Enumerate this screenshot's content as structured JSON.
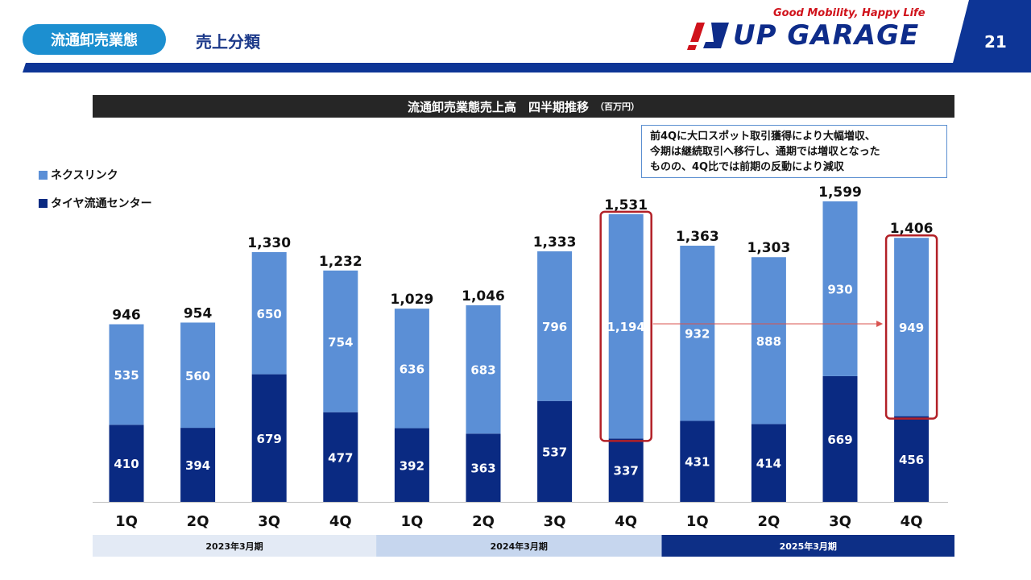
{
  "header": {
    "section_label": "流通卸売業態",
    "title": "売上分類",
    "tagline": "Good Mobility, Happy Life",
    "logo_text": "UP GARAGE",
    "page_number": "21"
  },
  "colors": {
    "light_blue": "#5b8fd6",
    "dark_navy": "#0a2a82",
    "highlight_red": "#b22027",
    "brand_blue": "#0d3596",
    "pill_blue": "#1c8fd0"
  },
  "note": {
    "lines": [
      "前4Qに大口スポット取引獲得により大幅増収、",
      "今期は継続取引へ移行し、通期では増収となった",
      "ものの、4Q比では前期の反動により減収"
    ]
  },
  "chart_data": {
    "type": "bar",
    "stacked": true,
    "title": "流通卸売業態売上高　四半期推移",
    "unit": "（百万円）",
    "categories": [
      "1Q",
      "2Q",
      "3Q",
      "4Q",
      "1Q",
      "2Q",
      "3Q",
      "4Q",
      "1Q",
      "2Q",
      "3Q",
      "4Q"
    ],
    "fiscal_years": [
      {
        "label": "2023年3月期",
        "quarters": 4,
        "fill": "#e3eaf5",
        "text_color": "#111111"
      },
      {
        "label": "2024年3月期",
        "quarters": 4,
        "fill": "#c6d6ee",
        "text_color": "#111111"
      },
      {
        "label": "2025年3月期",
        "quarters": 4,
        "fill": "#0d2f86",
        "text_color": "#ffffff"
      }
    ],
    "series": [
      {
        "name": "タイヤ流通センター",
        "color": "#0a2a82",
        "values": [
          410,
          394,
          679,
          477,
          392,
          363,
          537,
          337,
          431,
          414,
          669,
          456
        ]
      },
      {
        "name": "ネクスリンク",
        "color": "#5b8fd6",
        "values": [
          535,
          560,
          650,
          754,
          636,
          683,
          796,
          1194,
          932,
          888,
          930,
          949
        ]
      }
    ],
    "totals": [
      "946",
      "954",
      "1,330",
      "1,232",
      "1,029",
      "1,046",
      "1,333",
      "1,531",
      "1,363",
      "1,303",
      "1,599",
      "1,406"
    ],
    "segment_labels": {
      "bottom": [
        "410",
        "394",
        "679",
        "477",
        "392",
        "363",
        "537",
        "337",
        "431",
        "414",
        "669",
        "456"
      ],
      "top": [
        "535",
        "560",
        "650",
        "754",
        "636",
        "683",
        "796",
        "1,194",
        "932",
        "888",
        "930",
        "949"
      ]
    },
    "highlighted_bars": [
      7,
      11
    ],
    "arrow": {
      "from": 7,
      "to": 11
    },
    "legend_position": "top-left",
    "ylim": [
      0,
      1650
    ]
  }
}
